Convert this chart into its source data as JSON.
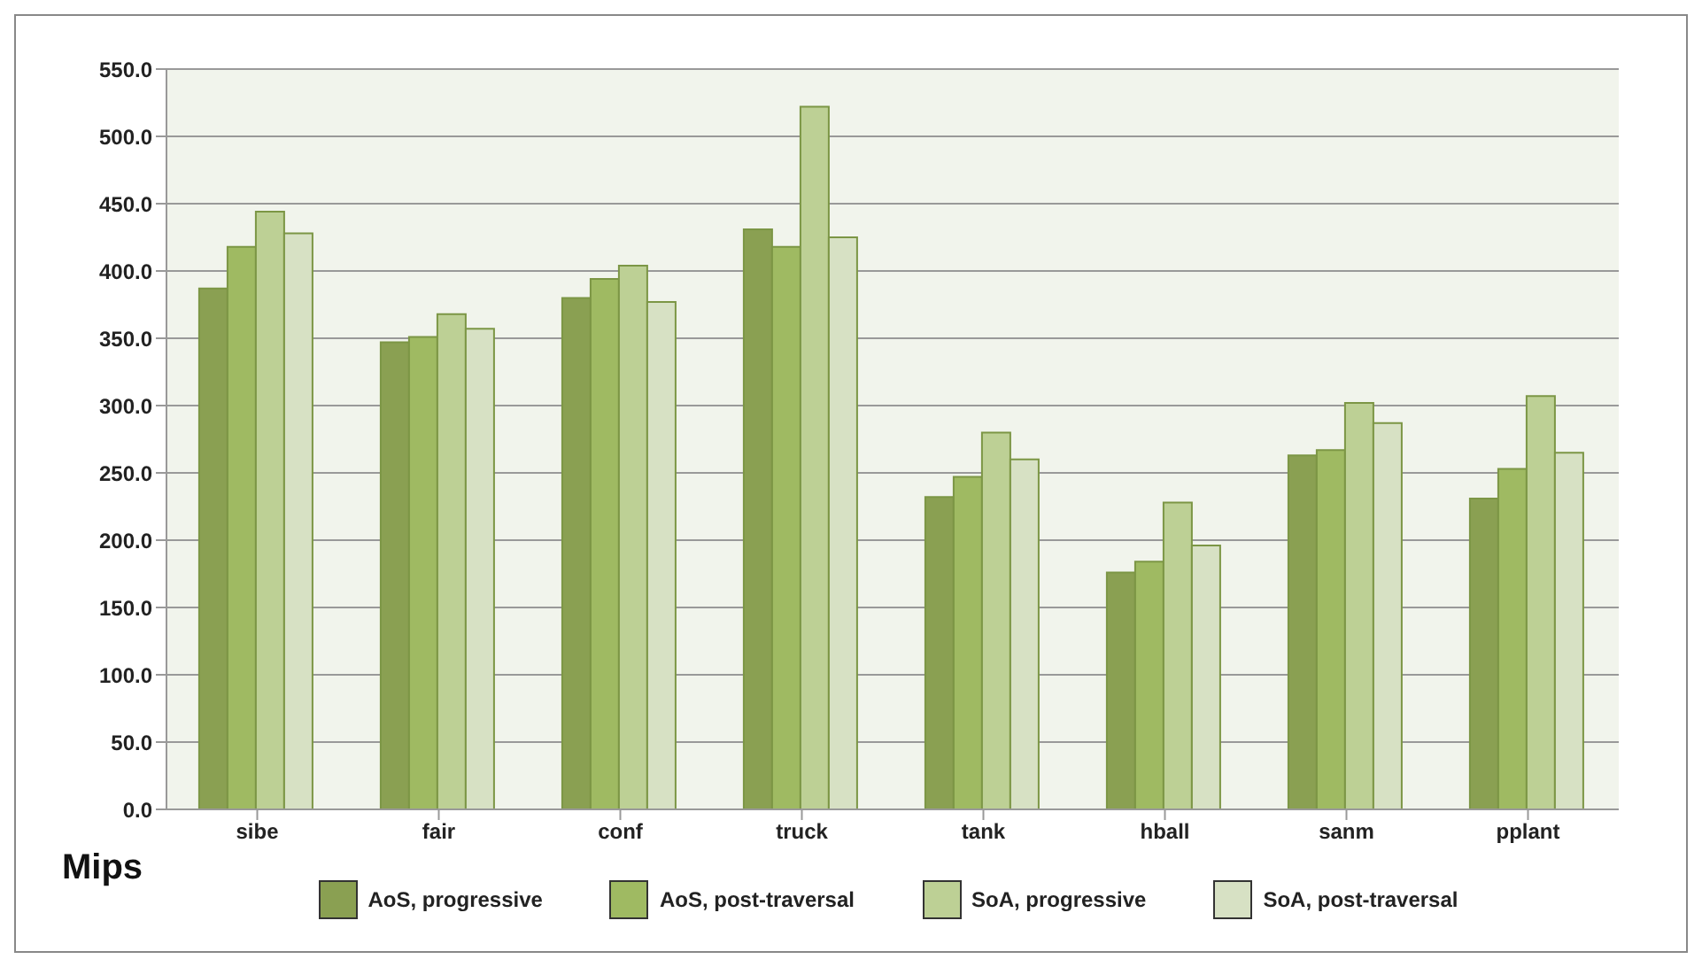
{
  "chart_data": {
    "type": "bar",
    "ylabel": "Mips",
    "categories": [
      "sibe",
      "fair",
      "conf",
      "truck",
      "tank",
      "hball",
      "sanm",
      "pplant"
    ],
    "series": [
      {
        "name": "AoS, progressive",
        "color": "#8aa052",
        "values": [
          387,
          347,
          380,
          431,
          232,
          176,
          263,
          231
        ]
      },
      {
        "name": "AoS, post-traversal",
        "color": "#9fba62",
        "values": [
          418,
          351,
          394,
          418,
          247,
          184,
          267,
          253
        ]
      },
      {
        "name": "SoA, progressive",
        "color": "#bdd095",
        "values": [
          444,
          368,
          404,
          522,
          280,
          228,
          302,
          307
        ]
      },
      {
        "name": "SoA, post-traversal",
        "color": "#d7e1c4",
        "values": [
          428,
          357,
          377,
          425,
          260,
          196,
          287,
          265
        ]
      }
    ],
    "ylim": [
      0,
      550
    ],
    "yticks": [
      {
        "value": 0,
        "label": "0.0"
      },
      {
        "value": 50,
        "label": "50.0"
      },
      {
        "value": 100,
        "label": "100.0"
      },
      {
        "value": 150,
        "label": "150.0"
      },
      {
        "value": 200,
        "label": "200.0"
      },
      {
        "value": 250,
        "label": "250.0"
      },
      {
        "value": 300,
        "label": "300.0"
      },
      {
        "value": 350,
        "label": "350.0"
      },
      {
        "value": 400,
        "label": "400.0"
      },
      {
        "value": 450,
        "label": "450.0"
      },
      {
        "value": 500,
        "label": "500.0"
      },
      {
        "value": 550,
        "label": "550.0"
      }
    ],
    "grid": "y",
    "legend": "bottom"
  }
}
